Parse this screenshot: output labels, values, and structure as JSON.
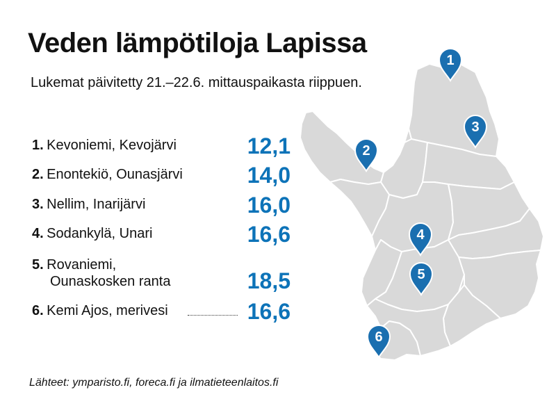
{
  "title": "Veden lämpötiloja Lapissa",
  "subtitle": "Lukemat päivitetty 21.–22.6. mittauspaikasta riippuen.",
  "locations": [
    {
      "num": "1.",
      "place": "Kevoniemi, Kevojärvi",
      "value": "12,1",
      "pin": "1"
    },
    {
      "num": "2.",
      "place": "Enontekiö, Ounasjärvi",
      "value": "14,0",
      "pin": "2"
    },
    {
      "num": "3.",
      "place": "Nellim, Inarijärvi",
      "value": "16,0",
      "pin": "3"
    },
    {
      "num": "4.",
      "place": "Sodankylä, Unari",
      "value": "16,6",
      "pin": "4"
    },
    {
      "num": "5.",
      "place_line1": "Rovaniemi,",
      "place_line2": "Ounaskosken ranta",
      "value": "18,5",
      "pin": "5"
    },
    {
      "num": "6.",
      "place": "Kemi Ajos, merivesi",
      "value": "16,6",
      "pin": "6"
    }
  ],
  "source": "Lähteet: ymparisto.fi, foreca.fi ja ilmatieteenlaitos.fi",
  "colors": {
    "accent": "#0d73b8",
    "map_fill": "#d9d9d9",
    "map_stroke": "#ffffff",
    "pin": "#1a6fb0"
  },
  "icons": {
    "pin": "map-pin-icon"
  }
}
